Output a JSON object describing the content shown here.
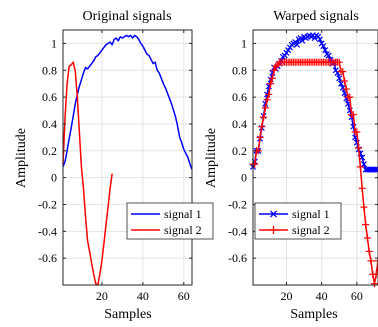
{
  "chart_data": [
    {
      "type": "line",
      "title": "Original signals",
      "xlabel": "Samples",
      "ylabel": "Amplitude",
      "xlim": [
        1,
        64
      ],
      "ylim": [
        -0.8,
        1.1
      ],
      "xticks": [
        20,
        40,
        60
      ],
      "yticks": [
        -0.6,
        -0.4,
        -0.2,
        0,
        0.2,
        0.4,
        0.6,
        0.8,
        1
      ],
      "xtick_labels": [
        "20",
        "40",
        "60"
      ],
      "ytick_labels": [
        "-0.6",
        "-0.4",
        "-0.2",
        "0",
        "0.2",
        "0.4",
        "0.6",
        "0.8",
        "1"
      ],
      "grid": true,
      "legend_position": "lower-right",
      "series": [
        {
          "name": "signal 1",
          "color": "#0000ff",
          "marker": "none",
          "x": [
            1,
            2,
            3,
            4,
            5,
            6,
            7,
            8,
            9,
            10,
            11,
            12,
            13,
            14,
            15,
            16,
            17,
            18,
            19,
            20,
            21,
            22,
            23,
            24,
            25,
            26,
            27,
            28,
            29,
            30,
            31,
            32,
            33,
            34,
            35,
            36,
            37,
            38,
            39,
            40,
            41,
            42,
            43,
            44,
            45,
            46,
            47,
            48,
            49,
            50,
            51,
            52,
            53,
            54,
            55,
            56,
            57,
            58,
            59,
            60,
            61,
            62,
            63,
            64
          ],
          "y": [
            0.08,
            0.12,
            0.2,
            0.29,
            0.37,
            0.46,
            0.55,
            0.62,
            0.68,
            0.73,
            0.78,
            0.82,
            0.81,
            0.83,
            0.85,
            0.87,
            0.9,
            0.91,
            0.93,
            0.95,
            0.97,
            0.99,
            1.0,
            1.01,
            0.99,
            1.03,
            1.04,
            1.02,
            1.05,
            1.04,
            1.05,
            1.06,
            1.05,
            1.06,
            1.04,
            1.06,
            1.05,
            1.03,
            1.0,
            0.98,
            0.95,
            0.92,
            0.91,
            0.88,
            0.85,
            0.86,
            0.8,
            0.78,
            0.74,
            0.7,
            0.67,
            0.63,
            0.59,
            0.55,
            0.5,
            0.45,
            0.38,
            0.3,
            0.26,
            0.21,
            0.18,
            0.15,
            0.1,
            0.06
          ]
        },
        {
          "name": "signal 2",
          "color": "#ff0000",
          "marker": "none",
          "x": [
            1,
            2,
            3,
            4,
            5,
            6,
            7,
            8,
            9,
            10,
            11,
            12,
            13,
            14,
            15,
            16,
            17,
            18,
            19,
            20,
            21,
            22,
            23,
            24,
            25
          ],
          "y": [
            0.1,
            0.45,
            0.7,
            0.83,
            0.84,
            0.86,
            0.79,
            0.6,
            0.34,
            0.08,
            -0.08,
            -0.29,
            -0.47,
            -0.55,
            -0.64,
            -0.72,
            -0.79,
            -0.8,
            -0.72,
            -0.62,
            -0.49,
            -0.35,
            -0.22,
            -0.08,
            0.03
          ]
        }
      ]
    },
    {
      "type": "line",
      "title": "Warped signals",
      "xlabel": "Samples",
      "ylabel": "Amplitude",
      "xlim": [
        1,
        72
      ],
      "ylim": [
        -0.8,
        1.1
      ],
      "xticks": [
        20,
        40,
        60
      ],
      "yticks": [
        -0.6,
        -0.4,
        -0.2,
        0,
        0.2,
        0.4,
        0.6,
        0.8,
        1
      ],
      "xtick_labels": [
        "20",
        "40",
        "60"
      ],
      "ytick_labels": [
        "-0.6",
        "-0.4",
        "-0.2",
        "0",
        "0.2",
        "0.4",
        "0.6",
        "0.8",
        "1"
      ],
      "grid": true,
      "legend_position": "lower-left",
      "series": [
        {
          "name": "signal 1",
          "color": "#0000ff",
          "marker": "x",
          "x": [
            1,
            2,
            3,
            4,
            5,
            6,
            7,
            8,
            9,
            10,
            11,
            12,
            13,
            14,
            15,
            16,
            17,
            18,
            19,
            20,
            21,
            22,
            23,
            24,
            25,
            26,
            27,
            28,
            29,
            30,
            31,
            32,
            33,
            34,
            35,
            36,
            37,
            38,
            39,
            40,
            41,
            42,
            43,
            44,
            45,
            46,
            47,
            48,
            49,
            50,
            51,
            52,
            53,
            54,
            55,
            56,
            57,
            58,
            59,
            60,
            61,
            62,
            63,
            64,
            65,
            66,
            67,
            68,
            69,
            70,
            71,
            72
          ],
          "y": [
            0.08,
            0.12,
            0.2,
            0.2,
            0.29,
            0.37,
            0.46,
            0.55,
            0.62,
            0.68,
            0.73,
            0.78,
            0.82,
            0.81,
            0.83,
            0.85,
            0.87,
            0.9,
            0.91,
            0.93,
            0.95,
            0.97,
            0.99,
            1.0,
            1.01,
            0.99,
            1.03,
            1.04,
            1.02,
            1.05,
            1.04,
            1.05,
            1.06,
            1.05,
            1.06,
            1.04,
            1.06,
            1.05,
            1.03,
            1.0,
            0.98,
            0.95,
            0.92,
            0.91,
            0.88,
            0.85,
            0.86,
            0.8,
            0.78,
            0.74,
            0.7,
            0.67,
            0.63,
            0.59,
            0.55,
            0.5,
            0.45,
            0.38,
            0.3,
            0.26,
            0.21,
            0.18,
            0.15,
            0.1,
            0.06,
            0.06,
            0.06,
            0.06,
            0.06,
            0.06,
            0.06,
            0.06
          ]
        },
        {
          "name": "signal 2",
          "color": "#ff0000",
          "marker": "+",
          "x": [
            1,
            2,
            3,
            4,
            5,
            6,
            7,
            8,
            9,
            10,
            11,
            12,
            13,
            14,
            15,
            16,
            17,
            18,
            19,
            20,
            21,
            22,
            23,
            24,
            25,
            26,
            27,
            28,
            29,
            30,
            31,
            32,
            33,
            34,
            35,
            36,
            37,
            38,
            39,
            40,
            41,
            42,
            43,
            44,
            45,
            46,
            47,
            48,
            49,
            50,
            51,
            52,
            53,
            54,
            55,
            56,
            57,
            58,
            59,
            60,
            61,
            62,
            63,
            64,
            65,
            66,
            67,
            68,
            69,
            70,
            71,
            72
          ],
          "y": [
            0.1,
            0.1,
            0.2,
            0.2,
            0.3,
            0.38,
            0.45,
            0.52,
            0.58,
            0.62,
            0.7,
            0.74,
            0.8,
            0.83,
            0.84,
            0.86,
            0.86,
            0.86,
            0.86,
            0.86,
            0.86,
            0.86,
            0.86,
            0.86,
            0.86,
            0.86,
            0.86,
            0.86,
            0.86,
            0.86,
            0.86,
            0.86,
            0.86,
            0.86,
            0.86,
            0.86,
            0.86,
            0.86,
            0.86,
            0.86,
            0.86,
            0.86,
            0.86,
            0.86,
            0.86,
            0.86,
            0.86,
            0.86,
            0.86,
            0.86,
            0.79,
            0.79,
            0.72,
            0.66,
            0.6,
            0.6,
            0.47,
            0.47,
            0.34,
            0.34,
            0.22,
            0.08,
            -0.08,
            -0.22,
            -0.35,
            -0.45,
            -0.55,
            -0.62,
            -0.72,
            -0.79,
            -0.72,
            -0.62
          ]
        }
      ]
    }
  ]
}
